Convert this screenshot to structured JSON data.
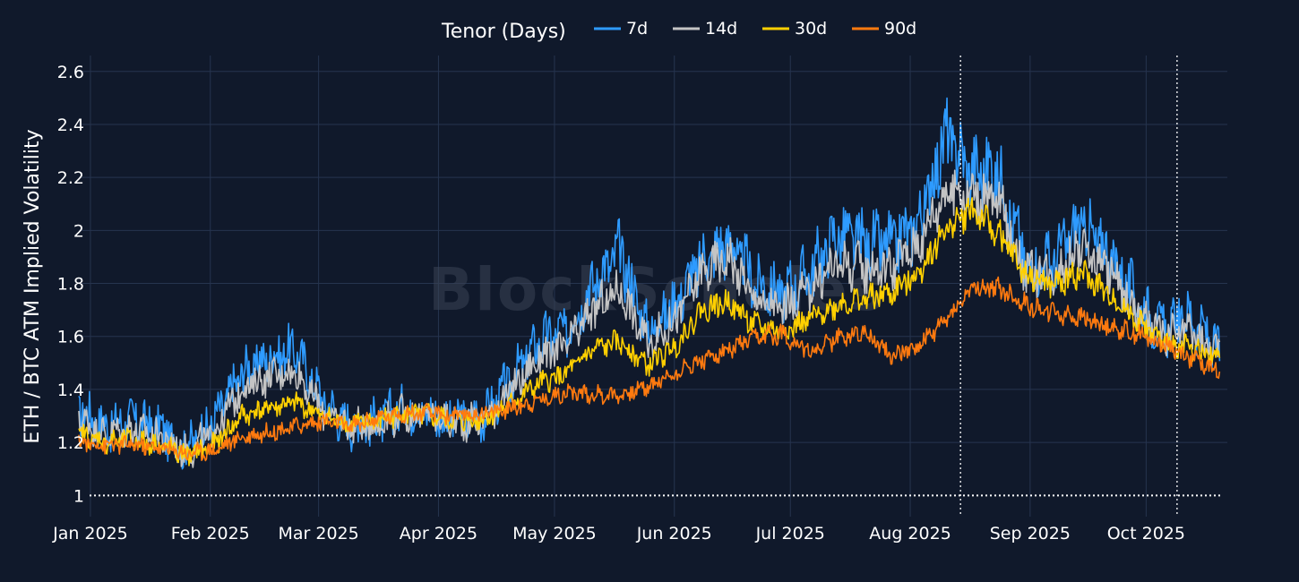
{
  "chart_data": {
    "type": "line",
    "legend": {
      "title": "Tenor (Days)",
      "placement": "top-center"
    },
    "ylabel": "ETH / BTC ATM Implied Volatility",
    "ylim": [
      0.92,
      2.66
    ],
    "yticks": [
      {
        "value": 1,
        "label": "1"
      },
      {
        "value": 1.2,
        "label": "1.2"
      },
      {
        "value": 1.4,
        "label": "1.4"
      },
      {
        "value": 1.6,
        "label": "1.6"
      },
      {
        "value": 1.8,
        "label": "1.8"
      },
      {
        "value": 2,
        "label": "2"
      },
      {
        "value": 2.2,
        "label": "2.2"
      },
      {
        "value": 2.4,
        "label": "2.4"
      },
      {
        "value": 2.6,
        "label": "2.6"
      }
    ],
    "xlim": [
      "2024-12-29",
      "2025-10-22"
    ],
    "xticks": [
      {
        "date": "2025-01-01",
        "label": "Jan 2025"
      },
      {
        "date": "2025-02-01",
        "label": "Feb 2025"
      },
      {
        "date": "2025-03-01",
        "label": "Mar 2025"
      },
      {
        "date": "2025-04-01",
        "label": "Apr 2025"
      },
      {
        "date": "2025-05-01",
        "label": "May 2025"
      },
      {
        "date": "2025-06-01",
        "label": "Jun 2025"
      },
      {
        "date": "2025-07-01",
        "label": "Jul 2025"
      },
      {
        "date": "2025-08-01",
        "label": "Aug 2025"
      },
      {
        "date": "2025-09-01",
        "label": "Sep 2025"
      },
      {
        "date": "2025-10-01",
        "label": "Oct 2025"
      }
    ],
    "grid": true,
    "reference_line": {
      "y": 1,
      "style": "dotted",
      "color": "#ffffff"
    },
    "vertical_markers": [
      "2025-08-14",
      "2025-10-09"
    ],
    "watermark": "BlockScholes",
    "x": [
      "2024-12-29",
      "2025-01-05",
      "2025-01-12",
      "2025-01-19",
      "2025-01-26",
      "2025-02-02",
      "2025-02-09",
      "2025-02-16",
      "2025-02-23",
      "2025-03-02",
      "2025-03-09",
      "2025-03-16",
      "2025-03-23",
      "2025-03-30",
      "2025-04-06",
      "2025-04-13",
      "2025-04-20",
      "2025-04-27",
      "2025-05-04",
      "2025-05-11",
      "2025-05-18",
      "2025-05-25",
      "2025-06-01",
      "2025-06-08",
      "2025-06-15",
      "2025-06-22",
      "2025-06-29",
      "2025-07-06",
      "2025-07-13",
      "2025-07-20",
      "2025-07-27",
      "2025-08-03",
      "2025-08-10",
      "2025-08-17",
      "2025-08-24",
      "2025-08-31",
      "2025-09-07",
      "2025-09-14",
      "2025-09-21",
      "2025-09-28",
      "2025-10-05",
      "2025-10-12",
      "2025-10-19"
    ],
    "series": [
      {
        "name": "7d",
        "color": "#2e9bff",
        "values": [
          1.32,
          1.26,
          1.28,
          1.25,
          1.18,
          1.28,
          1.46,
          1.52,
          1.55,
          1.36,
          1.26,
          1.28,
          1.33,
          1.31,
          1.28,
          1.3,
          1.44,
          1.58,
          1.62,
          1.8,
          1.92,
          1.62,
          1.72,
          1.88,
          1.96,
          1.8,
          1.76,
          1.84,
          1.98,
          1.95,
          1.94,
          2.02,
          2.35,
          2.22,
          2.22,
          1.86,
          1.88,
          2.02,
          1.92,
          1.75,
          1.62,
          1.68,
          1.56
        ]
      },
      {
        "name": "14d",
        "color": "#c4c4c4",
        "values": [
          1.29,
          1.23,
          1.25,
          1.22,
          1.16,
          1.24,
          1.4,
          1.45,
          1.47,
          1.32,
          1.26,
          1.27,
          1.31,
          1.3,
          1.27,
          1.29,
          1.4,
          1.52,
          1.56,
          1.7,
          1.78,
          1.57,
          1.66,
          1.84,
          1.9,
          1.74,
          1.7,
          1.78,
          1.88,
          1.86,
          1.86,
          1.95,
          2.15,
          2.14,
          2.1,
          1.84,
          1.84,
          1.94,
          1.86,
          1.7,
          1.6,
          1.62,
          1.54
        ]
      },
      {
        "name": "30d",
        "color": "#ffd000",
        "values": [
          1.23,
          1.2,
          1.21,
          1.19,
          1.15,
          1.19,
          1.3,
          1.33,
          1.35,
          1.3,
          1.27,
          1.28,
          1.31,
          1.3,
          1.28,
          1.29,
          1.35,
          1.42,
          1.46,
          1.55,
          1.58,
          1.49,
          1.56,
          1.7,
          1.73,
          1.64,
          1.62,
          1.66,
          1.72,
          1.74,
          1.76,
          1.84,
          2.0,
          2.08,
          1.98,
          1.83,
          1.79,
          1.84,
          1.76,
          1.67,
          1.58,
          1.56,
          1.52
        ]
      },
      {
        "name": "90d",
        "color": "#ff7a0f",
        "values": [
          1.2,
          1.19,
          1.19,
          1.18,
          1.16,
          1.17,
          1.22,
          1.24,
          1.26,
          1.28,
          1.26,
          1.29,
          1.31,
          1.31,
          1.3,
          1.31,
          1.33,
          1.36,
          1.39,
          1.38,
          1.38,
          1.41,
          1.46,
          1.51,
          1.55,
          1.59,
          1.61,
          1.54,
          1.59,
          1.62,
          1.53,
          1.56,
          1.66,
          1.78,
          1.78,
          1.72,
          1.69,
          1.67,
          1.64,
          1.61,
          1.58,
          1.52,
          1.48
        ]
      }
    ]
  }
}
